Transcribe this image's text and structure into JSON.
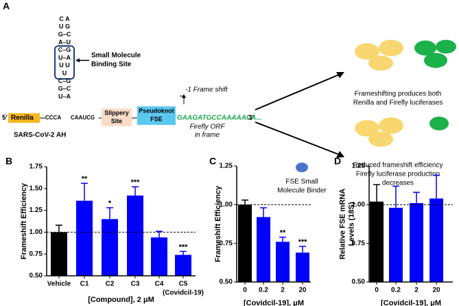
{
  "diagram": {
    "panel_label": "A",
    "hairpin": [
      "C A",
      "U    G",
      "G–C",
      "A–U",
      "C–G",
      "U–A",
      "U   U",
      "U",
      "C–G",
      "G–C",
      "U–A"
    ],
    "binding_site": [
      "Small Molecule",
      "Binding Site"
    ],
    "five_prime": "5'",
    "renilla": "Renilla",
    "seq_left": "CCCA",
    "seq_right": "CAAUCG",
    "slippery": [
      "Slippery",
      "Site"
    ],
    "pseudoknot": [
      "Pseudoknot",
      "FSE"
    ],
    "frame_shift": "-1 Frame shift",
    "sequence": "GAAGATGCCAAAAACA...",
    "sequence_end": "3'",
    "firefly": [
      "Firefly ORF",
      "in frame"
    ],
    "construct": "SARS-CoV-2 AH",
    "outcome_top": [
      "Frameshifting produces both",
      "Renilla and Firefly luciferases"
    ],
    "binder": [
      "FSE Small",
      "Molecule Binder"
    ],
    "outcome_bottom": [
      "Reduced frameshift efficiency",
      "Firefly luciferase production",
      "decreases"
    ]
  },
  "chart_data": [
    {
      "type": "bar",
      "panel_label": "B",
      "y_label": [
        "Frameshift Efficiency"
      ],
      "x_label": "[Compound], 2 μM",
      "categories": [
        "Vehicle",
        "C1",
        "C2",
        "C3",
        "C4",
        "C5"
      ],
      "category_sublabels": [
        null,
        null,
        null,
        null,
        null,
        "(Covidcil-19)"
      ],
      "values": [
        1.0,
        1.36,
        1.15,
        1.42,
        0.94,
        0.74
      ],
      "errors": [
        0.08,
        0.2,
        0.13,
        0.1,
        0.07,
        0.04
      ],
      "significance": [
        null,
        "**",
        "*",
        "***",
        null,
        "***"
      ],
      "colors": [
        "#000000",
        "#0000ff",
        "#0000ff",
        "#0000ff",
        "#0000ff",
        "#0000ff"
      ],
      "reference_line": 1.0,
      "ylim": [
        0.5,
        1.75
      ],
      "yticks": [
        {
          "value": 0.5,
          "label": "0.50"
        },
        {
          "value": 0.75,
          "label": "0.75"
        },
        {
          "value": 1.0,
          "label": "1.00"
        },
        {
          "value": 1.25,
          "label": "1.25"
        },
        {
          "value": 1.5,
          "label": "1.50"
        },
        {
          "value": 1.75,
          "label": "1.75"
        }
      ]
    },
    {
      "type": "bar",
      "panel_label": "C",
      "y_label": [
        "Frameshift Efficiency"
      ],
      "x_label": "[Covidcil-19], μM",
      "categories": [
        "0",
        "0.2",
        "2",
        "20"
      ],
      "values": [
        1.0,
        0.92,
        0.76,
        0.69
      ],
      "errors": [
        0.03,
        0.06,
        0.03,
        0.04
      ],
      "significance": [
        null,
        null,
        "**",
        "***"
      ],
      "colors": [
        "#000000",
        "#0000ff",
        "#0000ff",
        "#0000ff"
      ],
      "reference_line": 1.0,
      "ylim": [
        0.5,
        1.25
      ],
      "yticks": [
        {
          "value": 0.5,
          "label": "0.50"
        },
        {
          "value": 0.75,
          "label": "0.75"
        },
        {
          "value": 1.0,
          "label": "1.00"
        },
        {
          "value": 1.25,
          "label": "1.25"
        }
      ]
    },
    {
      "type": "bar",
      "panel_label": "D",
      "y_label": [
        "Relative FSE mRNA",
        "Levels (18S)"
      ],
      "x_label": "[Covidcil-19], μM",
      "categories": [
        "0",
        "0.2",
        "2",
        "20"
      ],
      "values": [
        1.02,
        0.98,
        1.01,
        1.04
      ],
      "errors": [
        0.11,
        0.14,
        0.07,
        0.15
      ],
      "colors": [
        "#000000",
        "#0000ff",
        "#0000ff",
        "#0000ff"
      ],
      "reference_line": 1.0,
      "ylim": [
        0.5,
        1.25
      ],
      "yticks": [
        {
          "value": 0.5,
          "label": "0.50"
        },
        {
          "value": 0.75,
          "label": "0.75"
        },
        {
          "value": 1.0,
          "label": "1.00"
        },
        {
          "value": 1.25,
          "label": "1.25"
        }
      ]
    }
  ]
}
